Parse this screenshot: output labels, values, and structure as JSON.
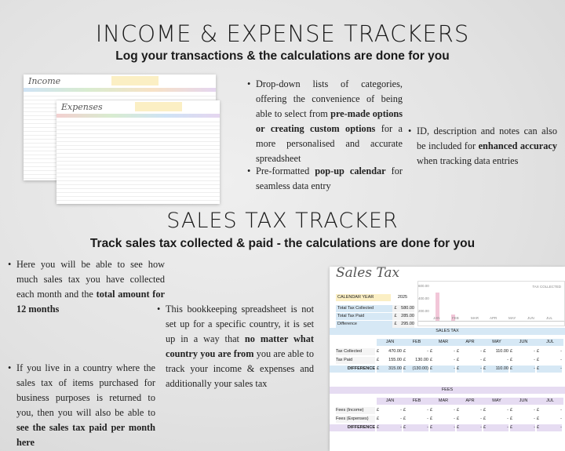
{
  "section1": {
    "title": "INCOME & EXPENSE TRACKERS",
    "subtitle": "Log your transactions & the calculations are done for you",
    "bullets": [
      [
        {
          "text": "Drop-down lists of categories, offering the convenience of being able to select from "
        },
        {
          "text": "pre-made options or creating custom options",
          "bold": true
        },
        {
          "text": " for a more personalised and accurate spreadsheet"
        }
      ],
      [
        {
          "text": "Pre-formatted "
        },
        {
          "text": "pop-up calendar",
          "bold": true
        },
        {
          "text": " for seamless data entry"
        }
      ],
      [
        {
          "text": "ID, description and notes can also be included for "
        },
        {
          "text": "enhanced accuracy",
          "bold": true
        },
        {
          "text": " when tracking data entries"
        }
      ]
    ]
  },
  "income_sheet": {
    "title": "Income"
  },
  "expense_sheet": {
    "title": "Expenses"
  },
  "section2": {
    "title": "SALES TAX TRACKER",
    "subtitle": "Track sales tax collected & paid - the calculations are done for you",
    "bullets": [
      [
        {
          "text": "Here you will be able to see how much sales tax you have collected each month and the "
        },
        {
          "text": "total amount for 12 months",
          "bold": true
        }
      ],
      [
        {
          "text": "If you live in a country where the sales tax of items purchased for business purposes is returned to you, then you will also be able to "
        },
        {
          "text": "see the sales tax paid per month here",
          "bold": true
        }
      ],
      [
        {
          "text": "This bookkeeping spreadsheet is not set up for a specific country, it is set up in a way that "
        },
        {
          "text": "no matter what country you are from",
          "bold": true
        },
        {
          "text": " you are able to track your income & expenses and additionally your sales tax"
        }
      ]
    ]
  },
  "sales_tax_sheet": {
    "title": "Sales Tax",
    "legend": "TAX COLLECTED",
    "currency": "£",
    "year_label": "CALENDAR YEAR",
    "year": "2025",
    "summary": [
      {
        "label": "Total Tax Collected",
        "amount": "580.00"
      },
      {
        "label": "Total Tax Paid",
        "amount": "285.00"
      },
      {
        "label": "Difference",
        "amount": "295.00"
      }
    ],
    "axis_labels": [
      "600.00",
      "400.00",
      "200.00"
    ],
    "months": [
      "JAN",
      "FEB",
      "MAR",
      "APR",
      "MAY",
      "JUN",
      "JUL"
    ],
    "tables": [
      {
        "heading": "SALES TAX",
        "rows": [
          {
            "label": "Tax Collected",
            "cells": [
              "470.00",
              "-",
              "-",
              "-",
              "110.00",
              "-",
              "-"
            ]
          },
          {
            "label": "Tax Paid",
            "cells": [
              "155.00",
              "130.00",
              "-",
              "-",
              "-",
              "-",
              "-"
            ]
          },
          {
            "label": "DIFFERENCE",
            "cells": [
              "315.00",
              "(130.00)",
              "-",
              "-",
              "110.00",
              "-",
              "-"
            ]
          }
        ]
      },
      {
        "heading": "FEES",
        "rows": [
          {
            "label": "Fees (Income)",
            "cells": [
              "-",
              "-",
              "-",
              "-",
              "-",
              "-",
              "-"
            ]
          },
          {
            "label": "Fees (Expenses)",
            "cells": [
              "-",
              "-",
              "-",
              "-",
              "-",
              "-",
              "-"
            ]
          },
          {
            "label": "DIFFERENCE",
            "cells": [
              "-",
              "-",
              "-",
              "-",
              "-",
              "-",
              "-"
            ]
          }
        ]
      }
    ]
  }
}
